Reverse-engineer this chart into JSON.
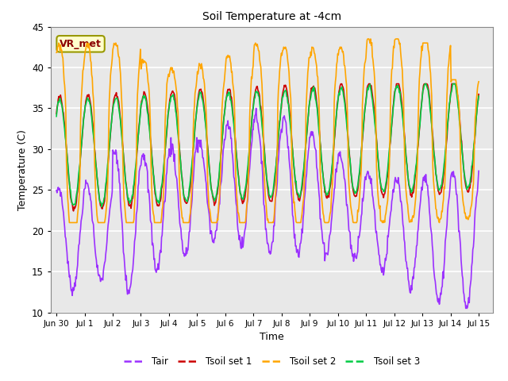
{
  "title": "Soil Temperature at -4cm",
  "xlabel": "Time",
  "ylabel": "Temperature (C)",
  "ylim": [
    10,
    45
  ],
  "xlim": [
    -0.2,
    15.5
  ],
  "xtick_positions": [
    0,
    1,
    2,
    3,
    4,
    5,
    6,
    7,
    8,
    9,
    10,
    11,
    12,
    13,
    14,
    15
  ],
  "xtick_labels": [
    "Jun 30",
    "Jul 1",
    "Jul 2",
    "Jul 3",
    "Jul 4",
    "Jul 5",
    "Jul 6",
    "Jul 7",
    "Jul 8",
    "Jul 9",
    "Jul 10",
    "Jul 11",
    "Jul 12",
    "Jul 13",
    "Jul 14",
    "Jul 15"
  ],
  "ytick_positions": [
    10,
    15,
    20,
    25,
    30,
    35,
    40,
    45
  ],
  "color_tair": "#9B30FF",
  "color_tsoil1": "#CC0000",
  "color_tsoil2": "#FFA500",
  "color_tsoil3": "#00CC44",
  "linewidth": 1.2,
  "legend_labels": [
    "Tair",
    "Tsoil set 1",
    "Tsoil set 2",
    "Tsoil set 3"
  ],
  "annotation_text": "VR_met",
  "plot_bg_color": "#e8e8e8",
  "fig_bg_color": "#ffffff",
  "grid_color": "#ffffff",
  "annotation_bg": "#ffffcc",
  "annotation_edge": "#999900",
  "annotation_text_color": "#8B0000"
}
